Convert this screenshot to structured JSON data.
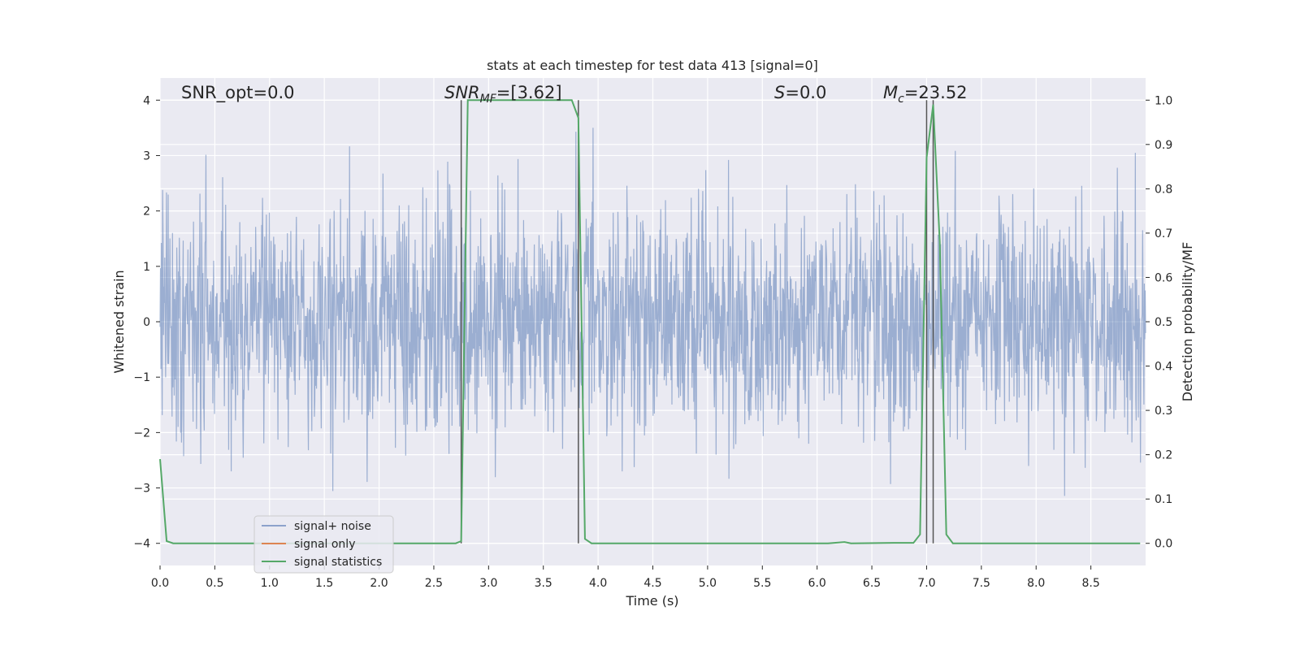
{
  "chart_data": {
    "type": "line",
    "title": "stats at each timestep for test data 413 [signal=0]",
    "xlabel": "Time (s)",
    "ylabel_left": "Whitened strain",
    "ylabel_right": "Detection probability/MF",
    "xlim": [
      0,
      9.0
    ],
    "ylim_left": [
      -4.4,
      4.4
    ],
    "ylim_right": [
      -0.05,
      1.05
    ],
    "grid": true,
    "legend_position": "lower-left",
    "x_ticks": [
      "0.0",
      "0.5",
      "1.0",
      "1.5",
      "2.0",
      "2.5",
      "3.0",
      "3.5",
      "4.0",
      "4.5",
      "5.0",
      "5.5",
      "6.0",
      "6.5",
      "7.0",
      "7.5",
      "8.0",
      "8.5"
    ],
    "x_tick_values": [
      0,
      0.5,
      1,
      1.5,
      2,
      2.5,
      3,
      3.5,
      4,
      4.5,
      5,
      5.5,
      6,
      6.5,
      7,
      7.5,
      8,
      8.5
    ],
    "y_left_ticks": [
      "−4",
      "−3",
      "−2",
      "−1",
      "0",
      "1",
      "2",
      "3",
      "4"
    ],
    "y_left_tick_values": [
      -4,
      -3,
      -2,
      -1,
      0,
      1,
      2,
      3,
      4
    ],
    "y_right_ticks": [
      "0.0",
      "0.1",
      "0.2",
      "0.3",
      "0.4",
      "0.5",
      "0.6",
      "0.7",
      "0.8",
      "0.9",
      "1.0"
    ],
    "y_right_tick_values": [
      0,
      0.1,
      0.2,
      0.3,
      0.4,
      0.5,
      0.6,
      0.7,
      0.8,
      0.9,
      1.0
    ],
    "annotations": {
      "snr_opt": "SNR_opt=0.0",
      "snr_mf_main": "SNR",
      "snr_mf_sub": "MF",
      "snr_mf_val": "=[3.62]",
      "s_main": "S",
      "s_val": "=0.0",
      "mc_main": "M",
      "mc_sub": "c",
      "mc_val": "=23.52"
    },
    "vertical_lines_x": [
      2.75,
      3.82,
      7.0,
      7.06
    ],
    "series": [
      {
        "name": "signal+ noise",
        "color": "#4c72b0",
        "axis": "left",
        "noise": {
          "seed": 413,
          "n": 2300,
          "sigma": 1.0,
          "clip_min": -3.9,
          "clip_max": 4.0
        }
      },
      {
        "name": "signal only",
        "color": "#dd8452",
        "axis": "left",
        "x": [],
        "y": []
      },
      {
        "name": "signal statistics",
        "color": "#55a868",
        "axis": "right",
        "x": [
          0.0,
          0.06,
          0.12,
          2.7,
          2.75,
          2.81,
          3.5,
          3.76,
          3.82,
          3.88,
          3.94,
          4.0,
          6.1,
          6.25,
          6.31,
          6.7,
          6.88,
          6.94,
          7.0,
          7.06,
          7.12,
          7.18,
          7.24,
          8.95
        ],
        "y": [
          0.19,
          0.005,
          0.0,
          0.0,
          0.005,
          1.0,
          1.0,
          1.0,
          0.96,
          0.01,
          0.0,
          0.0,
          0.0,
          0.003,
          0.0,
          0.001,
          0.001,
          0.02,
          0.87,
          0.99,
          0.68,
          0.02,
          0.0,
          0.0
        ]
      }
    ]
  }
}
